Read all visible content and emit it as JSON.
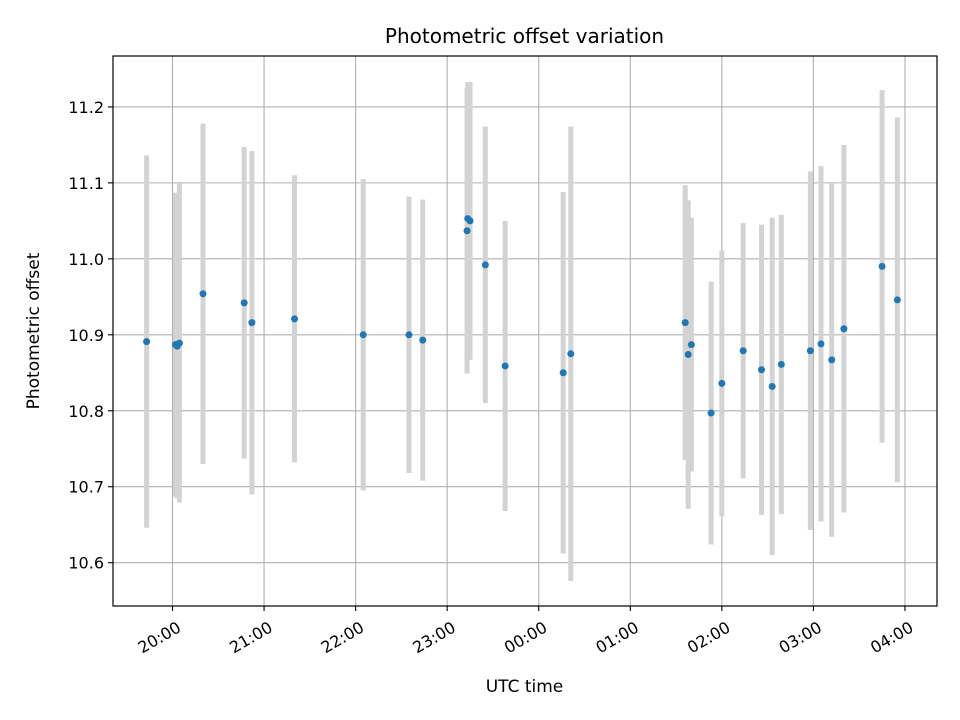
{
  "chart_data": {
    "type": "scatter",
    "title": "Photometric offset variation",
    "xlabel": "UTC time",
    "ylabel": "Photometric offset",
    "x_unit": "hours since 00:00 UTC (negative = previous evening)",
    "xlim": [
      -4.65,
      4.35
    ],
    "ylim": [
      10.543,
      11.267
    ],
    "x_ticks": [
      {
        "value": -4,
        "label": "20:00"
      },
      {
        "value": -3,
        "label": "21:00"
      },
      {
        "value": -2,
        "label": "22:00"
      },
      {
        "value": -1,
        "label": "23:00"
      },
      {
        "value": 0,
        "label": "00:00"
      },
      {
        "value": 1,
        "label": "01:00"
      },
      {
        "value": 2,
        "label": "02:00"
      },
      {
        "value": 3,
        "label": "03:00"
      },
      {
        "value": 4,
        "label": "04:00"
      }
    ],
    "y_ticks": [
      {
        "value": 10.6,
        "label": "10.6"
      },
      {
        "value": 10.7,
        "label": "10.7"
      },
      {
        "value": 10.8,
        "label": "10.8"
      },
      {
        "value": 10.9,
        "label": "10.9"
      },
      {
        "value": 11.0,
        "label": "11.0"
      },
      {
        "value": 11.1,
        "label": "11.1"
      },
      {
        "value": 11.2,
        "label": "11.2"
      }
    ],
    "grid": true,
    "point_color": "#1f77b4",
    "errorbar_color": "#d3d3d3",
    "points": [
      {
        "x": -4.283,
        "y": 10.891,
        "err": 0.245
      },
      {
        "x": -3.967,
        "y": 10.887,
        "err": 0.2
      },
      {
        "x": -3.95,
        "y": 10.885,
        "err": 0.2
      },
      {
        "x": -3.925,
        "y": 10.889,
        "err": 0.21
      },
      {
        "x": -3.667,
        "y": 10.954,
        "err": 0.224
      },
      {
        "x": -3.217,
        "y": 10.942,
        "err": 0.205
      },
      {
        "x": -3.133,
        "y": 10.916,
        "err": 0.226
      },
      {
        "x": -2.667,
        "y": 10.921,
        "err": 0.189
      },
      {
        "x": -1.917,
        "y": 10.9,
        "err": 0.205
      },
      {
        "x": -1.417,
        "y": 10.9,
        "err": 0.182
      },
      {
        "x": -1.267,
        "y": 10.893,
        "err": 0.185
      },
      {
        "x": -0.783,
        "y": 11.037,
        "err": 0.188
      },
      {
        "x": -0.775,
        "y": 11.053,
        "err": 0.18
      },
      {
        "x": -0.75,
        "y": 11.05,
        "err": 0.183
      },
      {
        "x": -0.583,
        "y": 10.992,
        "err": 0.182
      },
      {
        "x": -0.367,
        "y": 10.859,
        "err": 0.191
      },
      {
        "x": 0.267,
        "y": 10.85,
        "err": 0.238
      },
      {
        "x": 0.35,
        "y": 10.875,
        "err": 0.299
      },
      {
        "x": 1.6,
        "y": 10.916,
        "err": 0.181
      },
      {
        "x": 1.633,
        "y": 10.874,
        "err": 0.203
      },
      {
        "x": 1.667,
        "y": 10.887,
        "err": 0.167
      },
      {
        "x": 1.883,
        "y": 10.797,
        "err": 0.173
      },
      {
        "x": 2.0,
        "y": 10.836,
        "err": 0.175
      },
      {
        "x": 2.233,
        "y": 10.879,
        "err": 0.168
      },
      {
        "x": 2.433,
        "y": 10.854,
        "err": 0.191
      },
      {
        "x": 2.55,
        "y": 10.832,
        "err": 0.222
      },
      {
        "x": 2.65,
        "y": 10.861,
        "err": 0.197
      },
      {
        "x": 2.967,
        "y": 10.879,
        "err": 0.236
      },
      {
        "x": 3.083,
        "y": 10.888,
        "err": 0.234
      },
      {
        "x": 3.2,
        "y": 10.867,
        "err": 0.233
      },
      {
        "x": 3.333,
        "y": 10.908,
        "err": 0.242
      },
      {
        "x": 3.75,
        "y": 10.99,
        "err": 0.232
      },
      {
        "x": 3.917,
        "y": 10.946,
        "err": 0.24
      }
    ]
  }
}
